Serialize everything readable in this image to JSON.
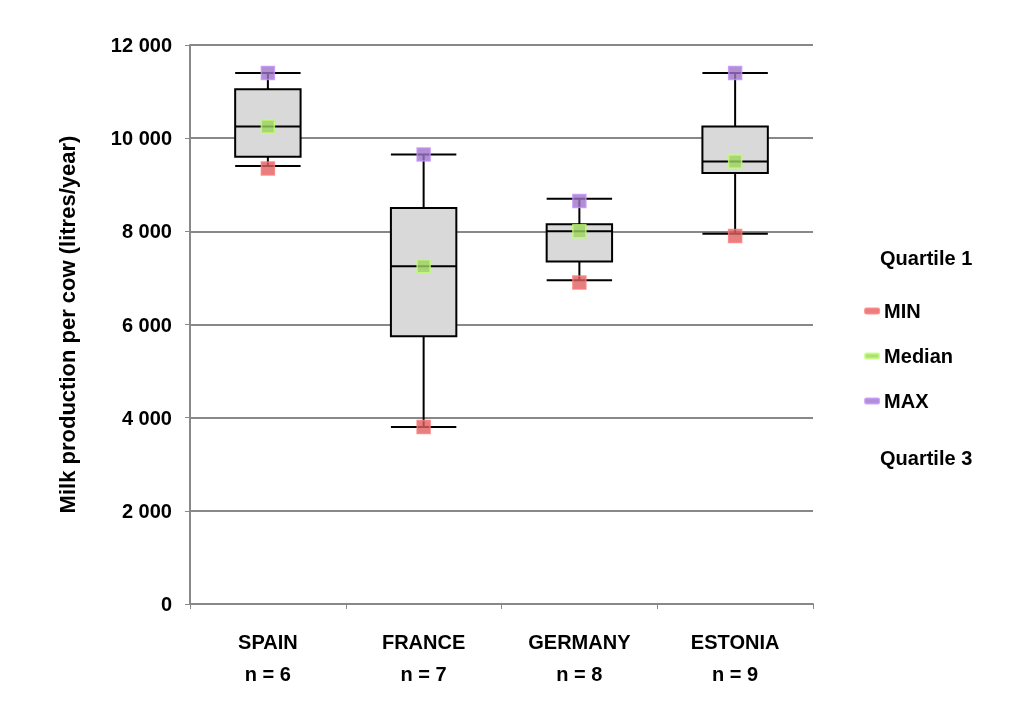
{
  "chart_data": {
    "type": "box",
    "ylabel": "Milk production per cow (litres/year)",
    "categories": [
      "SPAIN\nn = 6",
      "FRANCE\nn = 7",
      "GERMANY\nn = 8",
      "ESTONIA\nn = 9"
    ],
    "boxes": [
      {
        "low": 9400,
        "q1": 9600,
        "median": 10250,
        "q3": 11050,
        "high": 11400
      },
      {
        "low": 3800,
        "q1": 5750,
        "median": 7250,
        "q3": 8500,
        "high": 9650
      },
      {
        "low": 6950,
        "q1": 7350,
        "median": 8000,
        "q3": 8150,
        "high": 8700
      },
      {
        "low": 7950,
        "q1": 9250,
        "median": 9500,
        "q3": 10250,
        "high": 11400
      }
    ],
    "series": [
      {
        "name": "MIN",
        "type": "scatter",
        "color": "#e06060",
        "x": [
          "SPAIN\nn = 6",
          "FRANCE\nn = 7",
          "GERMANY\nn = 8",
          "ESTONIA\nn = 9"
        ],
        "values": [
          9350,
          3800,
          6900,
          7900
        ]
      },
      {
        "name": "Median",
        "type": "scatter",
        "color": "#9bd45a",
        "x": [
          "SPAIN\nn = 6",
          "FRANCE\nn = 7",
          "GERMANY\nn = 8",
          "ESTONIA\nn = 9"
        ],
        "values": [
          10250,
          7250,
          8000,
          9500
        ]
      },
      {
        "name": "MAX",
        "type": "scatter",
        "color": "#9c73c8",
        "x": [
          "SPAIN\nn = 6",
          "FRANCE\nn = 7",
          "GERMANY\nn = 8",
          "ESTONIA\nn = 9"
        ],
        "values": [
          11400,
          9650,
          8650,
          11400
        ]
      }
    ],
    "annotations": [
      "Quartile 1",
      "Quartile 3"
    ],
    "ylim": [
      0,
      12000
    ],
    "yticks": [
      {
        "value": 0,
        "label": "0"
      },
      {
        "value": 2000,
        "label": "2 000"
      },
      {
        "value": 4000,
        "label": "4 000"
      },
      {
        "value": 6000,
        "label": "6 000"
      },
      {
        "value": 8000,
        "label": "8 000"
      },
      {
        "value": 10000,
        "label": "10 000"
      },
      {
        "value": 12000,
        "label": "12 000"
      }
    ],
    "grid": "y",
    "legend": "right",
    "marker": "square"
  }
}
